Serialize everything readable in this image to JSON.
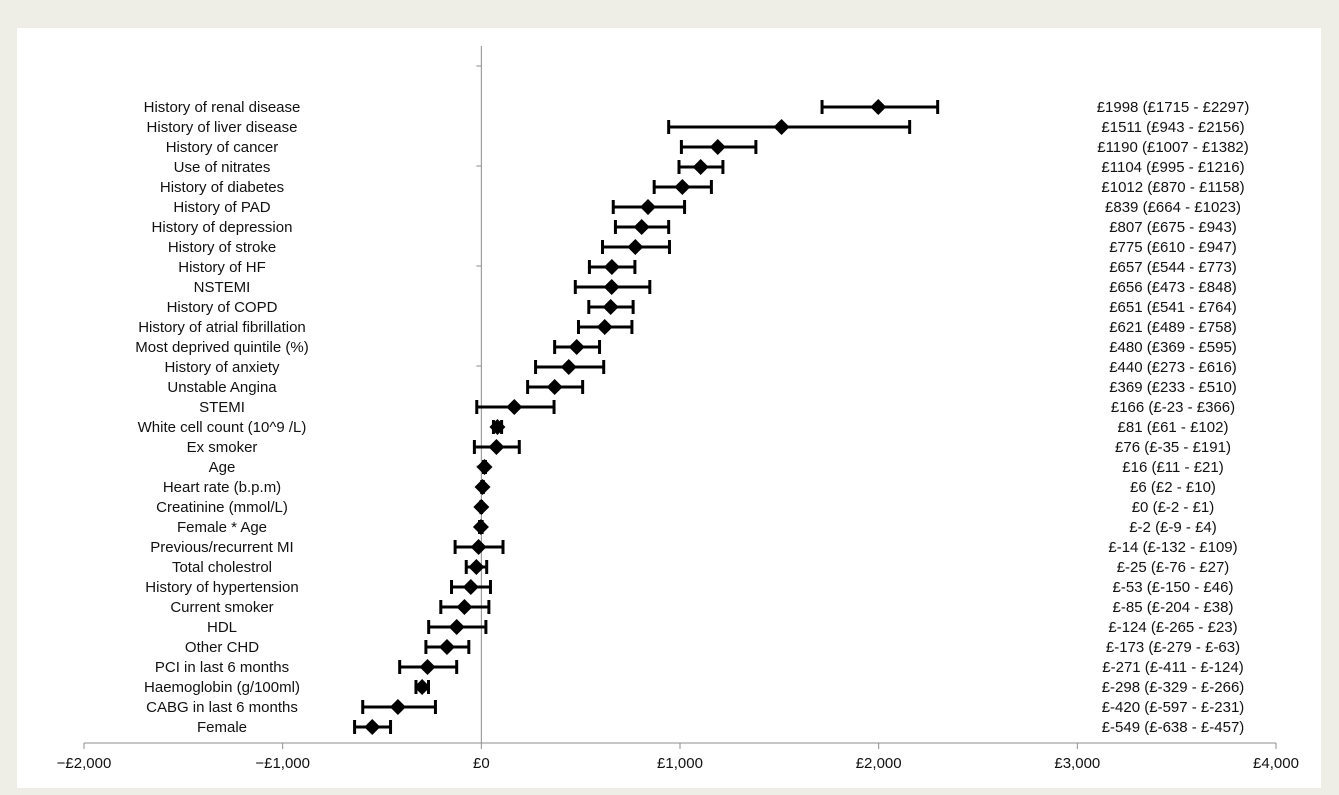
{
  "chart_data": {
    "type": "forest",
    "title": "",
    "xlabel": "",
    "ylabel": "",
    "xlim": [
      -2000,
      4000
    ],
    "x_ticks": [
      -2000,
      -1000,
      0,
      1000,
      2000,
      3000,
      4000
    ],
    "x_tick_labels": [
      "−£2,000",
      "−£1,000",
      "£0",
      "£1,000",
      "£2,000",
      "£3,000",
      "£4,000"
    ],
    "grid": false,
    "legend": "none",
    "marker_color": "#000000",
    "rows": [
      {
        "label": "History of renal disease",
        "value": 1998,
        "low": 1715,
        "high": 2297,
        "annotation": "£1998 (£1715 - £2297)"
      },
      {
        "label": "History of liver disease",
        "value": 1511,
        "low": 943,
        "high": 2156,
        "annotation": "£1511 (£943 - £2156)"
      },
      {
        "label": "History of cancer",
        "value": 1190,
        "low": 1007,
        "high": 1382,
        "annotation": "£1190 (£1007 - £1382)"
      },
      {
        "label": "Use of nitrates",
        "value": 1104,
        "low": 995,
        "high": 1216,
        "annotation": "£1104 (£995 - £1216)"
      },
      {
        "label": "History of diabetes",
        "value": 1012,
        "low": 870,
        "high": 1158,
        "annotation": "£1012 (£870 - £1158)"
      },
      {
        "label": "History of PAD",
        "value": 839,
        "low": 664,
        "high": 1023,
        "annotation": "£839 (£664 - £1023)"
      },
      {
        "label": "History of depression",
        "value": 807,
        "low": 675,
        "high": 943,
        "annotation": "£807 (£675 - £943)"
      },
      {
        "label": "History of stroke",
        "value": 775,
        "low": 610,
        "high": 947,
        "annotation": "£775 (£610 - £947)"
      },
      {
        "label": "History of HF",
        "value": 657,
        "low": 544,
        "high": 773,
        "annotation": "£657 (£544 - £773)"
      },
      {
        "label": "NSTEMI",
        "value": 656,
        "low": 473,
        "high": 848,
        "annotation": "£656 (£473 - £848)"
      },
      {
        "label": "History of COPD",
        "value": 651,
        "low": 541,
        "high": 764,
        "annotation": "£651 (£541 - £764)"
      },
      {
        "label": "History of atrial fibrillation",
        "value": 621,
        "low": 489,
        "high": 758,
        "annotation": "£621 (£489 - £758)"
      },
      {
        "label": "Most deprived quintile (%)",
        "value": 480,
        "low": 369,
        "high": 595,
        "annotation": "£480 (£369 - £595)"
      },
      {
        "label": "History of anxiety",
        "value": 440,
        "low": 273,
        "high": 616,
        "annotation": "£440 (£273 - £616)"
      },
      {
        "label": "Unstable Angina",
        "value": 369,
        "low": 233,
        "high": 510,
        "annotation": "£369 (£233 - £510)"
      },
      {
        "label": "STEMI",
        "value": 166,
        "low": -23,
        "high": 366,
        "annotation": "£166 (£-23 - £366)"
      },
      {
        "label": "White cell count (10^9 /L)",
        "value": 81,
        "low": 61,
        "high": 102,
        "annotation": "£81 (£61 - £102)"
      },
      {
        "label": "Ex smoker",
        "value": 76,
        "low": -35,
        "high": 191,
        "annotation": "£76 (£-35 - £191)"
      },
      {
        "label": "Age",
        "value": 16,
        "low": 11,
        "high": 21,
        "annotation": "£16 (£11 - £21)"
      },
      {
        "label": "Heart rate (b.p.m)",
        "value": 6,
        "low": 2,
        "high": 10,
        "annotation": "£6 (£2 - £10)"
      },
      {
        "label": "Creatinine (mmol/L)",
        "value": 0,
        "low": -2,
        "high": 1,
        "annotation": "£0 (£-2 - £1)"
      },
      {
        "label": "Female * Age",
        "value": -2,
        "low": -9,
        "high": 4,
        "annotation": "£-2 (£-9 - £4)"
      },
      {
        "label": "Previous/recurrent MI",
        "value": -14,
        "low": -132,
        "high": 109,
        "annotation": "£-14 (£-132 - £109)"
      },
      {
        "label": "Total cholestrol",
        "value": -25,
        "low": -76,
        "high": 27,
        "annotation": "£-25 (£-76 - £27)"
      },
      {
        "label": "History of hypertension",
        "value": -53,
        "low": -150,
        "high": 46,
        "annotation": "£-53 (£-150 - £46)"
      },
      {
        "label": "Current smoker",
        "value": -85,
        "low": -204,
        "high": 38,
        "annotation": "£-85 (£-204 - £38)"
      },
      {
        "label": "HDL",
        "value": -124,
        "low": -265,
        "high": 23,
        "annotation": "£-124 (£-265 - £23)"
      },
      {
        "label": "Other CHD",
        "value": -173,
        "low": -279,
        "high": -63,
        "annotation": "£-173 (£-279 - £-63)"
      },
      {
        "label": "PCI in last 6 months",
        "value": -271,
        "low": -411,
        "high": -124,
        "annotation": "£-271 (£-411 - £-124)"
      },
      {
        "label": "Haemoglobin (g/100ml)",
        "value": -298,
        "low": -329,
        "high": -266,
        "annotation": "£-298 (£-329 - £-266)"
      },
      {
        "label": "CABG in last 6 months",
        "value": -420,
        "low": -597,
        "high": -231,
        "annotation": "£-420 (£-597 - £-231)"
      },
      {
        "label": "Female",
        "value": -549,
        "low": -638,
        "high": -457,
        "annotation": "£-549 (£-638 - £-457)"
      }
    ]
  }
}
